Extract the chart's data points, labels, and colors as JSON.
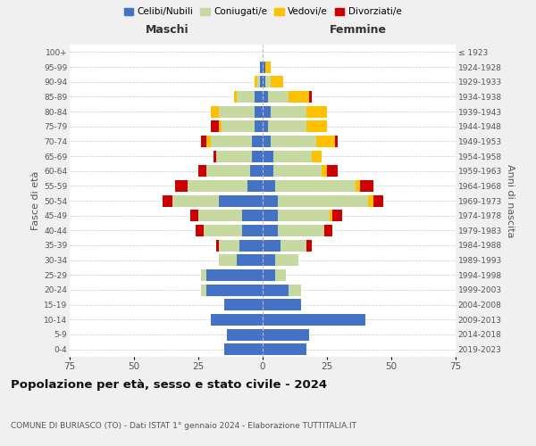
{
  "age_groups": [
    "0-4",
    "5-9",
    "10-14",
    "15-19",
    "20-24",
    "25-29",
    "30-34",
    "35-39",
    "40-44",
    "45-49",
    "50-54",
    "55-59",
    "60-64",
    "65-69",
    "70-74",
    "75-79",
    "80-84",
    "85-89",
    "90-94",
    "95-99",
    "100+"
  ],
  "birth_years": [
    "2019-2023",
    "2014-2018",
    "2009-2013",
    "2004-2008",
    "1999-2003",
    "1994-1998",
    "1989-1993",
    "1984-1988",
    "1979-1983",
    "1974-1978",
    "1969-1973",
    "1964-1968",
    "1959-1963",
    "1954-1958",
    "1949-1953",
    "1944-1948",
    "1939-1943",
    "1934-1938",
    "1929-1933",
    "1924-1928",
    "≤ 1923"
  ],
  "maschi": {
    "celibi": [
      15,
      14,
      20,
      15,
      22,
      22,
      10,
      9,
      8,
      8,
      17,
      6,
      5,
      4,
      4,
      3,
      3,
      3,
      1,
      1,
      0
    ],
    "coniugati": [
      0,
      0,
      0,
      0,
      2,
      2,
      7,
      8,
      15,
      17,
      18,
      23,
      17,
      14,
      16,
      13,
      14,
      7,
      1,
      0,
      0
    ],
    "vedovi": [
      0,
      0,
      0,
      0,
      0,
      0,
      0,
      0,
      0,
      0,
      0,
      0,
      0,
      0,
      2,
      1,
      3,
      1,
      1,
      0,
      0
    ],
    "divorziati": [
      0,
      0,
      0,
      0,
      0,
      0,
      0,
      1,
      3,
      3,
      4,
      5,
      3,
      1,
      2,
      3,
      0,
      0,
      0,
      0,
      0
    ]
  },
  "femmine": {
    "nubili": [
      17,
      18,
      40,
      15,
      10,
      5,
      5,
      7,
      6,
      6,
      6,
      5,
      4,
      4,
      3,
      2,
      3,
      2,
      1,
      1,
      0
    ],
    "coniugate": [
      0,
      0,
      0,
      0,
      5,
      4,
      9,
      10,
      18,
      20,
      35,
      31,
      19,
      15,
      18,
      15,
      14,
      8,
      2,
      0,
      0
    ],
    "vedove": [
      0,
      0,
      0,
      0,
      0,
      0,
      0,
      0,
      0,
      1,
      2,
      2,
      2,
      4,
      7,
      8,
      8,
      8,
      5,
      2,
      0
    ],
    "divorziate": [
      0,
      0,
      0,
      0,
      0,
      0,
      0,
      2,
      3,
      4,
      4,
      5,
      4,
      0,
      1,
      0,
      0,
      1,
      0,
      0,
      0
    ]
  },
  "colors": {
    "celibi": "#4472c4",
    "coniugati": "#c5d9a0",
    "vedovi": "#ffc000",
    "divorziati": "#cc0000"
  },
  "legend_labels": [
    "Celibi/Nubili",
    "Coniugati/e",
    "Vedovi/e",
    "Divorziati/e"
  ],
  "xlim": 75,
  "title": "Popolazione per età, sesso e stato civile - 2024",
  "subtitle": "COMUNE DI BURIASCO (TO) - Dati ISTAT 1° gennaio 2024 - Elaborazione TUTTITALIA.IT",
  "xlabel_left": "Maschi",
  "xlabel_right": "Femmine",
  "ylabel_left": "Fasce di età",
  "ylabel_right": "Anni di nascita",
  "bg_color": "#f0f0f0",
  "plot_bg_color": "#ffffff"
}
